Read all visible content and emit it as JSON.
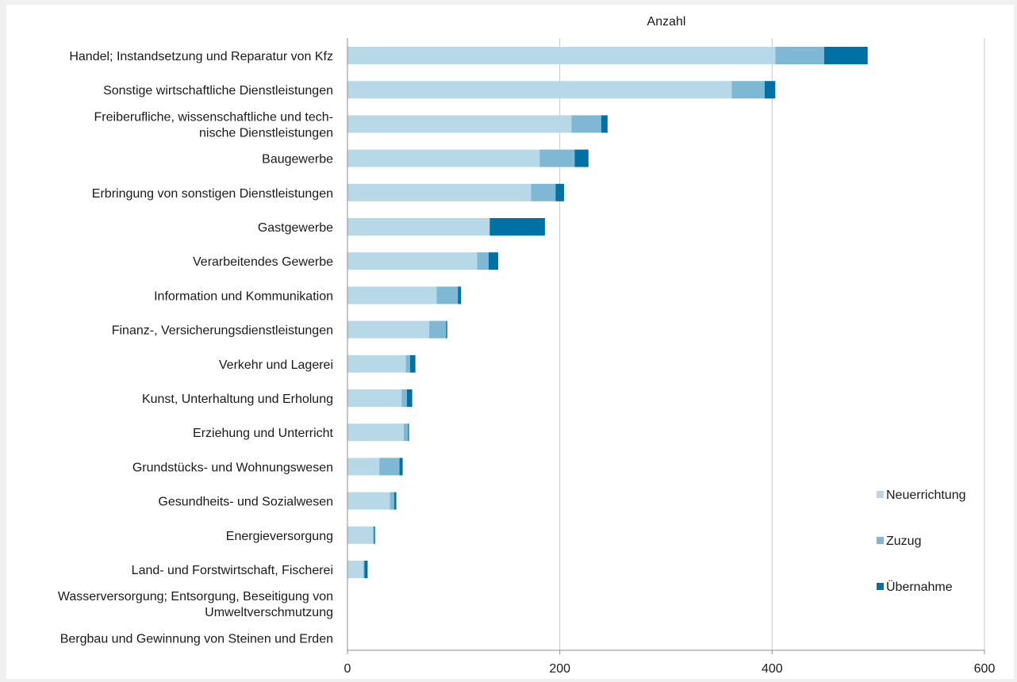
{
  "chart_data": {
    "type": "bar",
    "orientation": "horizontal",
    "stacked": true,
    "title": "",
    "xlabel": "Anzahl",
    "ylabel": "",
    "xlim": [
      0,
      600
    ],
    "xticks": [
      0,
      200,
      400,
      600
    ],
    "grid": true,
    "legend_position": "right",
    "categories": [
      [
        "Handel; Instandsetzung und Reparatur von Kfz"
      ],
      [
        "Sonstige wirtschaftliche Dienstleistungen"
      ],
      [
        "Freiberufliche, wissenschaftliche und tech-",
        "nische Dienstleistungen"
      ],
      [
        "Baugewerbe"
      ],
      [
        "Erbringung von sonstigen Dienstleistungen"
      ],
      [
        "Gastgewerbe"
      ],
      [
        "Verarbeitendes Gewerbe"
      ],
      [
        "Information und Kommunikation"
      ],
      [
        "Finanz-, Versicherungsdienstleistungen"
      ],
      [
        "Verkehr und Lagerei"
      ],
      [
        "Kunst, Unterhaltung und Erholung"
      ],
      [
        "Erziehung und Unterricht"
      ],
      [
        "Grundstücks- und Wohnungswesen"
      ],
      [
        "Gesundheits- und Sozialwesen"
      ],
      [
        "Energieversorgung"
      ],
      [
        "Land- und Forstwirtschaft, Fischerei"
      ],
      [
        "Wasserversorgung; Entsorgung, Beseitigung von",
        "Umweltverschmutzung"
      ],
      [
        "Bergbau und Gewinnung von Steinen und Erden"
      ]
    ],
    "series": [
      {
        "name": "Neuerrichtung",
        "color": "#b7d8e6",
        "values": [
          403,
          362,
          211,
          181,
          173,
          134,
          122,
          84,
          77,
          55,
          51,
          53,
          30,
          40,
          24,
          15,
          0,
          0
        ]
      },
      {
        "name": "Zuzug",
        "color": "#7fb8d4",
        "values": [
          46,
          31,
          28,
          33,
          23,
          0,
          11,
          20,
          16,
          4,
          5,
          4,
          19,
          4,
          1,
          1,
          0,
          0
        ]
      },
      {
        "name": "Übernahme",
        "color": "#0071a4",
        "values": [
          41,
          10,
          6,
          13,
          8,
          52,
          9,
          3,
          1,
          5,
          5,
          1,
          3,
          2,
          1,
          3,
          0,
          0
        ]
      }
    ]
  }
}
